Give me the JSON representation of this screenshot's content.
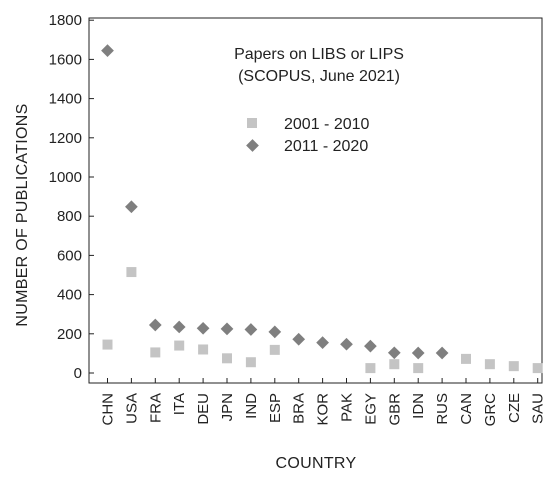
{
  "chart_data": {
    "type": "scatter",
    "title": "",
    "annotation_line1": "Papers on LIBS or LIPS",
    "annotation_line2": "(SCOPUS, June 2021)",
    "xlabel": "COUNTRY",
    "ylabel": "NUMBER OF PUBLICATIONS",
    "ylim": [
      -100,
      1800
    ],
    "yticks": [
      0,
      200,
      400,
      600,
      800,
      1000,
      1200,
      1400,
      1600,
      1800
    ],
    "categories": [
      "CHN",
      "USA",
      "FRA",
      "ITA",
      "DEU",
      "JPN",
      "IND",
      "ESP",
      "BRA",
      "KOR",
      "PAK",
      "EGY",
      "GBR",
      "IDN",
      "RUS",
      "CAN",
      "GRC",
      "CZE",
      "SAU"
    ],
    "series": [
      {
        "name": "2001 - 2010",
        "marker": "square",
        "color": "#c4c4c4",
        "values": [
          145,
          515,
          105,
          140,
          120,
          75,
          55,
          118,
          null,
          null,
          null,
          25,
          45,
          25,
          null,
          72,
          45,
          35,
          25
        ]
      },
      {
        "name": "2011 - 2020",
        "marker": "diamond",
        "color": "#7f7f7f",
        "values": [
          1645,
          848,
          245,
          235,
          228,
          225,
          222,
          210,
          172,
          155,
          147,
          137,
          103,
          102,
          102,
          null,
          null,
          null,
          null
        ]
      }
    ],
    "grid": false,
    "legend_position": "top-right"
  }
}
